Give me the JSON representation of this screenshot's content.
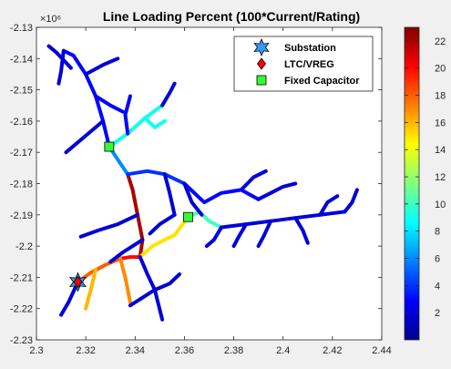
{
  "chart_data": {
    "type": "network",
    "title": "Line Loading Percent (100*Current/Rating)",
    "xlabel": "",
    "ylabel": "",
    "xlim": [
      2.3,
      2.44
    ],
    "ylim": [
      -2.23,
      -2.13
    ],
    "x_ticks": [
      "2.3",
      "2.32",
      "2.34",
      "2.36",
      "2.38",
      "2.4",
      "2.42",
      "2.44"
    ],
    "y_ticks": [
      "-2.13",
      "-2.14",
      "-2.15",
      "-2.16",
      "-2.17",
      "-2.18",
      "-2.19",
      "-2.2",
      "-2.21",
      "-2.22",
      "-2.23"
    ],
    "y_exponent_label": "×10⁶",
    "colorbar": {
      "range": [
        0,
        23
      ],
      "ticks": [
        "2",
        "4",
        "6",
        "8",
        "10",
        "12",
        "14",
        "16",
        "18",
        "20",
        "22"
      ],
      "colormap": "jet"
    },
    "legend": {
      "placement": "top-right",
      "entries": [
        {
          "label": "Substation",
          "marker": "hexagram",
          "color": "#3399ff"
        },
        {
          "label": "LTC/VREG",
          "marker": "diamond",
          "color": "#ff0000"
        },
        {
          "label": "Fixed Capacitor",
          "marker": "square",
          "color": "#33ff33"
        }
      ]
    },
    "markers": {
      "substation": {
        "x": 2.3168,
        "y": -2.2115
      },
      "regulator": {
        "x": 2.3168,
        "y": -2.2115
      },
      "capacitors": [
        {
          "x": 2.3295,
          "y": -2.1682
        },
        {
          "x": 2.3615,
          "y": -2.1907
        }
      ]
    },
    "edges": [
      {
        "pts": [
          [
            2.3168,
            -2.2115
          ],
          [
            2.322,
            -2.2085
          ],
          [
            2.328,
            -2.206
          ],
          [
            2.334,
            -2.204
          ]
        ],
        "v": 18
      },
      {
        "pts": [
          [
            2.334,
            -2.204
          ],
          [
            2.338,
            -2.2035
          ],
          [
            2.342,
            -2.2035
          ]
        ],
        "v": 20
      },
      {
        "pts": [
          [
            2.342,
            -2.2035
          ],
          [
            2.343,
            -2.198
          ],
          [
            2.341,
            -2.19
          ],
          [
            2.339,
            -2.182
          ],
          [
            2.337,
            -2.177
          ]
        ],
        "v": 22
      },
      {
        "pts": [
          [
            2.342,
            -2.2035
          ],
          [
            2.347,
            -2.2
          ],
          [
            2.352,
            -2.198
          ],
          [
            2.356,
            -2.1965
          ],
          [
            2.3615,
            -2.1907
          ]
        ],
        "v": 15
      },
      {
        "pts": [
          [
            2.3615,
            -2.1907
          ],
          [
            2.366,
            -2.189
          ],
          [
            2.37,
            -2.192
          ],
          [
            2.375,
            -2.194
          ]
        ],
        "v": 10
      },
      {
        "pts": [
          [
            2.375,
            -2.194
          ],
          [
            2.385,
            -2.193
          ],
          [
            2.395,
            -2.192
          ],
          [
            2.405,
            -2.191
          ],
          [
            2.415,
            -2.19
          ],
          [
            2.425,
            -2.189
          ]
        ],
        "v": 2
      },
      {
        "pts": [
          [
            2.337,
            -2.177
          ],
          [
            2.334,
            -2.1735
          ],
          [
            2.3295,
            -2.1682
          ]
        ],
        "v": 6
      },
      {
        "pts": [
          [
            2.3295,
            -2.1682
          ],
          [
            2.327,
            -2.16
          ],
          [
            2.324,
            -2.152
          ],
          [
            2.32,
            -2.145
          ],
          [
            2.315,
            -2.139
          ],
          [
            2.311,
            -2.1375
          ]
        ],
        "v": 3
      },
      {
        "pts": [
          [
            2.3295,
            -2.1682
          ],
          [
            2.337,
            -2.164
          ],
          [
            2.344,
            -2.159
          ],
          [
            2.351,
            -2.155
          ]
        ],
        "v": 9
      },
      {
        "pts": [
          [
            2.342,
            -2.2035
          ],
          [
            2.345,
            -2.209
          ],
          [
            2.348,
            -2.214
          ],
          [
            2.351,
            -2.2235
          ]
        ],
        "v": 2
      },
      {
        "pts": [
          [
            2.337,
            -2.177
          ],
          [
            2.345,
            -2.176
          ],
          [
            2.352,
            -2.177
          ],
          [
            2.36,
            -2.18
          ]
        ],
        "v": 4
      },
      {
        "pts": [
          [
            2.36,
            -2.18
          ],
          [
            2.368,
            -2.186
          ],
          [
            2.375,
            -2.183
          ],
          [
            2.383,
            -2.182
          ],
          [
            2.39,
            -2.185
          ]
        ],
        "v": 3
      },
      {
        "pts": [
          [
            2.324,
            -2.2075
          ],
          [
            2.322,
            -2.214
          ],
          [
            2.32,
            -2.22
          ]
        ],
        "v": 16
      },
      {
        "pts": [
          [
            2.3168,
            -2.2115
          ],
          [
            2.313,
            -2.218
          ],
          [
            2.31,
            -2.222
          ]
        ],
        "v": 2
      },
      {
        "pts": [
          [
            2.334,
            -2.204
          ],
          [
            2.336,
            -2.21
          ],
          [
            2.338,
            -2.218
          ]
        ],
        "v": 17
      },
      {
        "pts": [
          [
            2.314,
            -2.143
          ],
          [
            2.308,
            -2.138
          ],
          [
            2.305,
            -2.136
          ]
        ],
        "v": 2
      },
      {
        "pts": [
          [
            2.32,
            -2.145
          ],
          [
            2.327,
            -2.142
          ],
          [
            2.333,
            -2.14
          ]
        ],
        "v": 2
      },
      {
        "pts": [
          [
            2.324,
            -2.152
          ],
          [
            2.33,
            -2.155
          ],
          [
            2.335,
            -2.157
          ]
        ],
        "v": 3
      },
      {
        "pts": [
          [
            2.327,
            -2.16
          ],
          [
            2.318,
            -2.166
          ],
          [
            2.312,
            -2.17
          ]
        ],
        "v": 2
      },
      {
        "pts": [
          [
            2.344,
            -2.159
          ],
          [
            2.348,
            -2.162
          ],
          [
            2.352,
            -2.16
          ]
        ],
        "v": 9
      },
      {
        "pts": [
          [
            2.337,
            -2.164
          ],
          [
            2.336,
            -2.158
          ],
          [
            2.338,
            -2.152
          ]
        ],
        "v": 3
      },
      {
        "pts": [
          [
            2.341,
            -2.19
          ],
          [
            2.333,
            -2.193
          ],
          [
            2.325,
            -2.195
          ],
          [
            2.318,
            -2.197
          ]
        ],
        "v": 2
      },
      {
        "pts": [
          [
            2.343,
            -2.198
          ],
          [
            2.335,
            -2.202
          ],
          [
            2.33,
            -2.205
          ]
        ],
        "v": 2
      },
      {
        "pts": [
          [
            2.352,
            -2.177
          ],
          [
            2.354,
            -2.183
          ],
          [
            2.356,
            -2.19
          ]
        ],
        "v": 2
      },
      {
        "pts": [
          [
            2.356,
            -2.19
          ],
          [
            2.35,
            -2.193
          ],
          [
            2.346,
            -2.196
          ]
        ],
        "v": 2
      },
      {
        "pts": [
          [
            2.36,
            -2.18
          ],
          [
            2.363,
            -2.186
          ],
          [
            2.367,
            -2.19
          ]
        ],
        "v": 2
      },
      {
        "pts": [
          [
            2.383,
            -2.182
          ],
          [
            2.388,
            -2.178
          ],
          [
            2.393,
            -2.176
          ]
        ],
        "v": 2
      },
      {
        "pts": [
          [
            2.39,
            -2.185
          ],
          [
            2.395,
            -2.183
          ],
          [
            2.4,
            -2.181
          ],
          [
            2.405,
            -2.18
          ]
        ],
        "v": 2
      },
      {
        "pts": [
          [
            2.415,
            -2.19
          ],
          [
            2.418,
            -2.186
          ],
          [
            2.422,
            -2.184
          ]
        ],
        "v": 2
      },
      {
        "pts": [
          [
            2.425,
            -2.189
          ],
          [
            2.428,
            -2.186
          ],
          [
            2.43,
            -2.182
          ]
        ],
        "v": 2
      },
      {
        "pts": [
          [
            2.405,
            -2.191
          ],
          [
            2.408,
            -2.195
          ],
          [
            2.41,
            -2.199
          ]
        ],
        "v": 2
      },
      {
        "pts": [
          [
            2.395,
            -2.192
          ],
          [
            2.392,
            -2.197
          ],
          [
            2.39,
            -2.2
          ]
        ],
        "v": 2
      },
      {
        "pts": [
          [
            2.385,
            -2.193
          ],
          [
            2.382,
            -2.197
          ],
          [
            2.38,
            -2.2
          ]
        ],
        "v": 2
      },
      {
        "pts": [
          [
            2.375,
            -2.194
          ],
          [
            2.372,
            -2.198
          ],
          [
            2.369,
            -2.2
          ]
        ],
        "v": 2
      },
      {
        "pts": [
          [
            2.348,
            -2.214
          ],
          [
            2.342,
            -2.217
          ],
          [
            2.338,
            -2.219
          ]
        ],
        "v": 2
      },
      {
        "pts": [
          [
            2.348,
            -2.214
          ],
          [
            2.354,
            -2.212
          ],
          [
            2.358,
            -2.209
          ]
        ],
        "v": 2
      },
      {
        "pts": [
          [
            2.351,
            -2.155
          ],
          [
            2.354,
            -2.151
          ],
          [
            2.356,
            -2.148
          ]
        ],
        "v": 2
      },
      {
        "pts": [
          [
            2.311,
            -2.1375
          ],
          [
            2.31,
            -2.144
          ],
          [
            2.309,
            -2.148
          ]
        ],
        "v": 2
      }
    ]
  }
}
